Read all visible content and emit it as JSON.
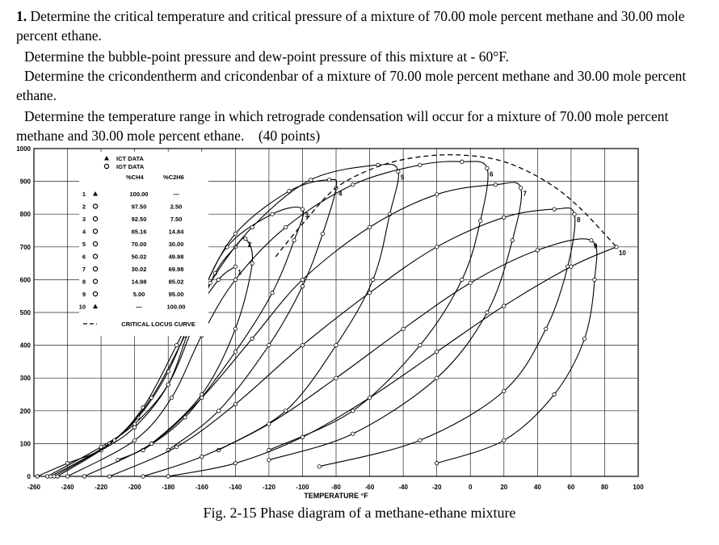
{
  "question": {
    "number": "1.",
    "line1": "Determine the critical temperature and critical pressure of a mixture of 70.00 mole percent methane and 30.00 mole percent ethane.",
    "line2": "Determine the bubble-point pressure and dew-point pressure of this mixture at - 60°F.",
    "line3": "Determine the cricondentherm and cricondenbar of a mixture of 70.00 mole percent methane and 30.00 mole percent ethane.",
    "line4": "Determine the temperature range in which retrograde condensation will occur for a mixture of 70.00 mole percent methane and 30.00 mole percent ethane.",
    "points": "(40 points)"
  },
  "caption": "Fig. 2-15 Phase diagram of a methane-ethane mixture",
  "chart_data": {
    "type": "line",
    "title": "",
    "xlabel": "TEMPERATURE °F",
    "ylabel": "",
    "xlim": [
      -260,
      100
    ],
    "ylim": [
      0,
      1000
    ],
    "grid": true,
    "x_ticks": [
      -260,
      -240,
      -220,
      -200,
      -180,
      -160,
      -140,
      -120,
      -100,
      -80,
      -60,
      -40,
      -20,
      0,
      20,
      40,
      60,
      80,
      100
    ],
    "y_ticks": [
      0,
      100,
      200,
      300,
      400,
      500,
      600,
      700,
      800,
      900,
      1000
    ],
    "legend": {
      "placement": "top-left",
      "markers": [
        {
          "symbol": "triangle",
          "label": "ICT DATA"
        },
        {
          "symbol": "circle",
          "label": "IGT DATA"
        }
      ],
      "col_ch4": "%CH4",
      "col_c2h6": "%C2H6",
      "rows": [
        {
          "num": "1",
          "sym": "triangle",
          "ch4": "100.00",
          "c2h6": "—"
        },
        {
          "num": "2",
          "sym": "circle",
          "ch4": "97.50",
          "c2h6": "2.50"
        },
        {
          "num": "3",
          "sym": "circle",
          "ch4": "92.50",
          "c2h6": "7.50"
        },
        {
          "num": "4",
          "sym": "circle",
          "ch4": "85.16",
          "c2h6": "14.84"
        },
        {
          "num": "5",
          "sym": "circle",
          "ch4": "70.00",
          "c2h6": "30.00"
        },
        {
          "num": "6",
          "sym": "circle",
          "ch4": "50.02",
          "c2h6": "49.98"
        },
        {
          "num": "7",
          "sym": "circle",
          "ch4": "30.02",
          "c2h6": "69.98"
        },
        {
          "num": "8",
          "sym": "circle",
          "ch4": "14.98",
          "c2h6": "85.02"
        },
        {
          "num": "9",
          "sym": "circle",
          "ch4": "5.00",
          "c2h6": "95.00"
        },
        {
          "num": "10",
          "sym": "triangle",
          "ch4": "—",
          "c2h6": "100.00"
        }
      ],
      "locus_label": "CRITICAL LOCUS CURVE"
    },
    "series": [
      {
        "name": "1",
        "bubble": [
          [
            -258,
            0
          ],
          [
            -240,
            40
          ],
          [
            -220,
            80
          ],
          [
            -200,
            150
          ],
          [
            -180,
            280
          ],
          [
            -165,
            480
          ],
          [
            -150,
            600
          ],
          [
            -140,
            640
          ]
        ],
        "dew": []
      },
      {
        "name": "2",
        "bubble": [
          [
            -252,
            0
          ],
          [
            -220,
            90
          ],
          [
            -200,
            160
          ],
          [
            -180,
            280
          ],
          [
            -165,
            460
          ],
          [
            -152,
            620
          ],
          [
            -140,
            700
          ],
          [
            -134,
            725
          ]
        ],
        "dew": [
          [
            -134,
            725
          ],
          [
            -130,
            650
          ],
          [
            -140,
            450
          ],
          [
            -160,
            250
          ],
          [
            -190,
            100
          ],
          [
            -210,
            50
          ]
        ]
      },
      {
        "name": "3",
        "bubble": [
          [
            -250,
            0
          ],
          [
            -218,
            90
          ],
          [
            -198,
            180
          ],
          [
            -180,
            320
          ],
          [
            -163,
            520
          ],
          [
            -145,
            700
          ],
          [
            -118,
            800
          ],
          [
            -100,
            815
          ]
        ],
        "dew": [
          [
            -100,
            815
          ],
          [
            -105,
            720
          ],
          [
            -118,
            560
          ],
          [
            -140,
            380
          ],
          [
            -170,
            180
          ],
          [
            -195,
            80
          ]
        ]
      },
      {
        "name": "4",
        "bubble": [
          [
            -248,
            0
          ],
          [
            -215,
            100
          ],
          [
            -195,
            210
          ],
          [
            -175,
            400
          ],
          [
            -160,
            560
          ],
          [
            -140,
            740
          ],
          [
            -108,
            870
          ],
          [
            -84,
            905
          ],
          [
            -80,
            880
          ]
        ],
        "dew": [
          [
            -80,
            880
          ],
          [
            -88,
            740
          ],
          [
            -100,
            580
          ],
          [
            -120,
            400
          ],
          [
            -150,
            200
          ],
          [
            -180,
            80
          ]
        ]
      },
      {
        "name": "5",
        "bubble": [
          [
            -246,
            0
          ],
          [
            -212,
            110
          ],
          [
            -190,
            240
          ],
          [
            -170,
            430
          ],
          [
            -155,
            590
          ],
          [
            -130,
            760
          ],
          [
            -95,
            905
          ],
          [
            -55,
            950
          ],
          [
            -43,
            930
          ]
        ],
        "dew": [
          [
            -43,
            930
          ],
          [
            -48,
            800
          ],
          [
            -58,
            600
          ],
          [
            -80,
            400
          ],
          [
            -110,
            200
          ],
          [
            -150,
            80
          ]
        ]
      },
      {
        "name": "6",
        "bubble": [
          [
            -240,
            0
          ],
          [
            -200,
            110
          ],
          [
            -178,
            240
          ],
          [
            -160,
            430
          ],
          [
            -140,
            600
          ],
          [
            -110,
            760
          ],
          [
            -70,
            890
          ],
          [
            -30,
            950
          ],
          [
            -5,
            960
          ],
          [
            10,
            940
          ]
        ],
        "dew": [
          [
            10,
            940
          ],
          [
            6,
            780
          ],
          [
            -5,
            600
          ],
          [
            -30,
            400
          ],
          [
            -70,
            200
          ],
          [
            -120,
            80
          ]
        ]
      },
      {
        "name": "7",
        "bubble": [
          [
            -230,
            0
          ],
          [
            -190,
            100
          ],
          [
            -160,
            240
          ],
          [
            -130,
            420
          ],
          [
            -100,
            600
          ],
          [
            -60,
            760
          ],
          [
            -20,
            860
          ],
          [
            15,
            890
          ],
          [
            30,
            880
          ]
        ],
        "dew": [
          [
            30,
            880
          ],
          [
            25,
            720
          ],
          [
            10,
            500
          ],
          [
            -20,
            300
          ],
          [
            -70,
            130
          ],
          [
            -120,
            50
          ]
        ]
      },
      {
        "name": "8",
        "bubble": [
          [
            -215,
            0
          ],
          [
            -175,
            90
          ],
          [
            -140,
            220
          ],
          [
            -100,
            400
          ],
          [
            -60,
            560
          ],
          [
            -20,
            700
          ],
          [
            20,
            790
          ],
          [
            50,
            815
          ],
          [
            62,
            800
          ]
        ],
        "dew": [
          [
            62,
            800
          ],
          [
            58,
            640
          ],
          [
            45,
            450
          ],
          [
            20,
            260
          ],
          [
            -30,
            110
          ],
          [
            -90,
            30
          ]
        ]
      },
      {
        "name": "9",
        "bubble": [
          [
            -195,
            0
          ],
          [
            -160,
            60
          ],
          [
            -120,
            160
          ],
          [
            -80,
            300
          ],
          [
            -40,
            450
          ],
          [
            0,
            590
          ],
          [
            40,
            690
          ],
          [
            72,
            720
          ]
        ],
        "dew": [
          [
            72,
            720
          ],
          [
            74,
            600
          ],
          [
            68,
            420
          ],
          [
            50,
            250
          ],
          [
            20,
            110
          ],
          [
            -20,
            40
          ]
        ]
      },
      {
        "name": "10",
        "bubble": [
          [
            -180,
            0
          ],
          [
            -140,
            40
          ],
          [
            -100,
            120
          ],
          [
            -60,
            240
          ],
          [
            -20,
            380
          ],
          [
            20,
            520
          ],
          [
            60,
            640
          ],
          [
            87,
            700
          ]
        ],
        "dew": []
      }
    ],
    "critical_locus": [
      [
        -116,
        670
      ],
      [
        -100,
        770
      ],
      [
        -80,
        880
      ],
      [
        -55,
        945
      ],
      [
        -30,
        975
      ],
      [
        -5,
        980
      ],
      [
        20,
        960
      ],
      [
        45,
        900
      ],
      [
        65,
        820
      ],
      [
        87,
        700
      ]
    ]
  }
}
